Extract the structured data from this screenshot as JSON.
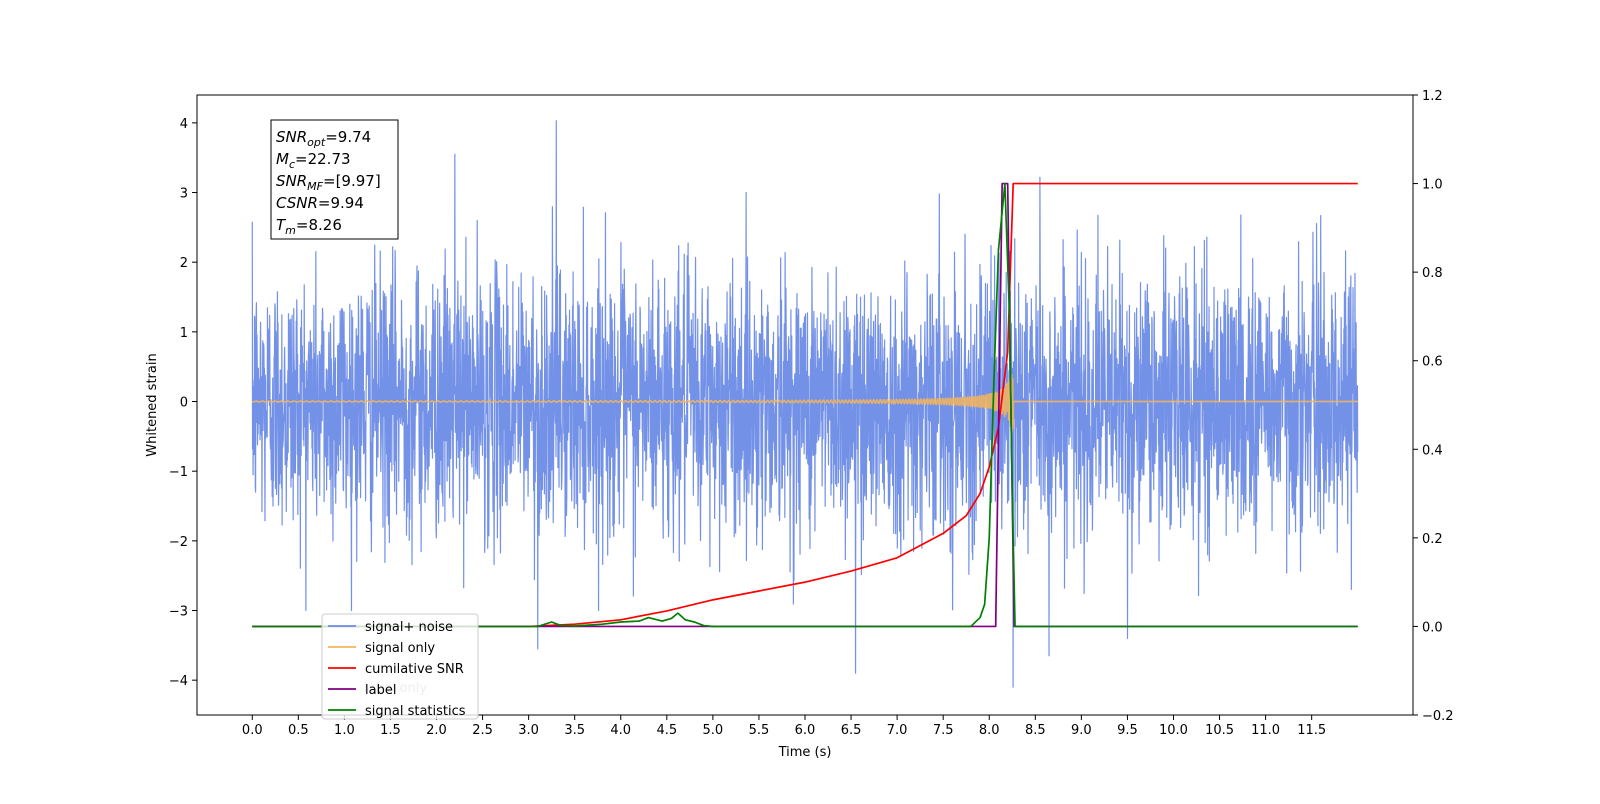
{
  "chart_data": {
    "type": "line",
    "xlabel": "Time (s)",
    "ylabel": "Whitened strain",
    "xlim": [
      -0.6,
      12.6
    ],
    "ylim": [
      -4.5,
      4.4
    ],
    "y2lim": [
      -0.2,
      1.2
    ],
    "x_ticks": [
      0.0,
      0.5,
      1.0,
      1.5,
      2.0,
      2.5,
      3.0,
      3.5,
      4.0,
      4.5,
      5.0,
      5.5,
      6.0,
      6.5,
      7.0,
      7.5,
      8.0,
      8.5,
      9.0,
      9.5,
      10.0,
      10.5,
      11.0,
      11.5
    ],
    "x_tick_labels": [
      "0.0",
      "0.5",
      "1.0",
      "1.5",
      "2.0",
      "2.5",
      "3.0",
      "3.5",
      "4.0",
      "4.5",
      "5.0",
      "5.5",
      "6.0",
      "6.5",
      "7.0",
      "7.5",
      "8.0",
      "8.5",
      "9.0",
      "9.5",
      "10.0",
      "10.5",
      "11.0",
      "11.5"
    ],
    "y_ticks": [
      -4,
      -3,
      -2,
      -1,
      0,
      1,
      2,
      3,
      4
    ],
    "y_tick_labels": [
      "−4",
      "−3",
      "−2",
      "−1",
      "0",
      "1",
      "2",
      "3",
      "4"
    ],
    "y2_ticks": [
      -0.2,
      0.0,
      0.2,
      0.4,
      0.6,
      0.8,
      1.0,
      1.2
    ],
    "y2_tick_labels": [
      "−0.2",
      "0.0",
      "0.2",
      "0.4",
      "0.6",
      "0.8",
      "1.0",
      "1.2"
    ],
    "grid": false,
    "legend_position": "lower-left",
    "series": [
      {
        "name": "signal+ noise",
        "axis": "left",
        "color": "#6b8be6",
        "kind": "noise",
        "x_range": [
          0.0,
          12.0
        ],
        "typical_amplitude": 1.5,
        "extremes": [
          {
            "x": 3.3,
            "y": 4.03
          },
          {
            "x": 2.2,
            "y": 3.55
          },
          {
            "x": 8.55,
            "y": 3.22
          },
          {
            "x": 8.26,
            "y": -4.1
          },
          {
            "x": 6.55,
            "y": -3.9
          },
          {
            "x": 8.65,
            "y": -3.65
          },
          {
            "x": 9.5,
            "y": -3.4
          },
          {
            "x": 3.1,
            "y": -3.55
          }
        ]
      },
      {
        "name": "signal only",
        "axis": "left",
        "color": "#f5b55a",
        "kind": "chirp",
        "x_range": [
          0.0,
          12.0
        ],
        "merger_time": 8.26,
        "peak_amplitude": 0.55
      },
      {
        "name": "cumilative SNR",
        "axis": "right",
        "color": "#ff0000",
        "points": [
          [
            0.0,
            0.0
          ],
          [
            3.0,
            0.0
          ],
          [
            3.5,
            0.005
          ],
          [
            4.0,
            0.015
          ],
          [
            4.5,
            0.035
          ],
          [
            5.0,
            0.06
          ],
          [
            5.5,
            0.08
          ],
          [
            6.0,
            0.1
          ],
          [
            6.5,
            0.125
          ],
          [
            7.0,
            0.155
          ],
          [
            7.5,
            0.21
          ],
          [
            7.75,
            0.25
          ],
          [
            7.9,
            0.3
          ],
          [
            8.0,
            0.36
          ],
          [
            8.1,
            0.45
          ],
          [
            8.2,
            0.62
          ],
          [
            8.26,
            1.0
          ],
          [
            12.0,
            1.0
          ]
        ]
      },
      {
        "name": "label",
        "axis": "right",
        "color": "#800080",
        "points": [
          [
            0.0,
            0.0
          ],
          [
            8.07,
            0.0
          ],
          [
            8.14,
            1.0
          ],
          [
            8.2,
            1.0
          ],
          [
            8.27,
            0.0
          ],
          [
            12.0,
            0.0
          ]
        ]
      },
      {
        "name": "signal statistics",
        "axis": "right",
        "color": "#008000",
        "points": [
          [
            0.0,
            0.0
          ],
          [
            3.1,
            0.0
          ],
          [
            3.25,
            0.01
          ],
          [
            3.35,
            0.002
          ],
          [
            3.5,
            0.001
          ],
          [
            3.8,
            0.005
          ],
          [
            4.0,
            0.01
          ],
          [
            4.2,
            0.012
          ],
          [
            4.3,
            0.02
          ],
          [
            4.45,
            0.012
          ],
          [
            4.55,
            0.018
          ],
          [
            4.62,
            0.03
          ],
          [
            4.7,
            0.015
          ],
          [
            4.8,
            0.01
          ],
          [
            4.9,
            0.002
          ],
          [
            5.0,
            0.0
          ],
          [
            7.8,
            0.0
          ],
          [
            7.9,
            0.02
          ],
          [
            7.95,
            0.05
          ],
          [
            8.0,
            0.2
          ],
          [
            8.05,
            0.55
          ],
          [
            8.1,
            0.85
          ],
          [
            8.17,
            1.0
          ],
          [
            8.22,
            0.7
          ],
          [
            8.25,
            0.3
          ],
          [
            8.28,
            0.0
          ],
          [
            12.0,
            0.0
          ]
        ]
      }
    ],
    "legend": [
      {
        "label": "signal+ noise",
        "color": "#6b8be6"
      },
      {
        "label": "signal only",
        "color": "#f5b55a"
      },
      {
        "label": "cumilative SNR",
        "color": "#ff0000"
      },
      {
        "label": "label",
        "color": "#800080"
      },
      {
        "label": "signal statistics",
        "color": "#008000"
      }
    ],
    "hidden_legend_text": "label only",
    "info_box": [
      {
        "base": "SNR",
        "sub": "opt",
        "value": "=9.74"
      },
      {
        "base": "M",
        "sub": "c",
        "value": "=22.73"
      },
      {
        "base": "SNR",
        "sub": "MF",
        "value": "=[9.97]"
      },
      {
        "base": "CSNR",
        "sub": "",
        "value": "=9.94"
      },
      {
        "base": "T",
        "sub": "m",
        "value": "=8.26"
      }
    ]
  }
}
